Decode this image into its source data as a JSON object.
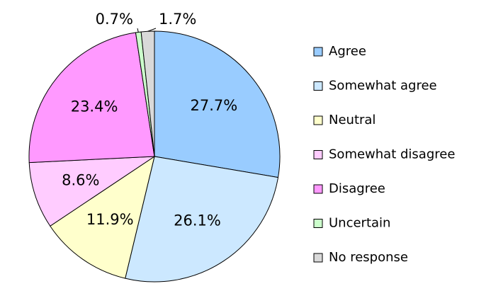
{
  "chart_data": {
    "type": "pie",
    "categories": [
      "Agree",
      "Somewhat agree",
      "Neutral",
      "Somewhat disagree",
      "Disagree",
      "Uncertain",
      "No response"
    ],
    "values": [
      27.7,
      26.1,
      11.9,
      8.6,
      23.4,
      0.7,
      1.7
    ],
    "value_labels": [
      "27.7%",
      "26.1%",
      "11.9%",
      "8.6%",
      "23.4%",
      "0.7%",
      "1.7%"
    ],
    "colors": [
      "#99ccff",
      "#cce8ff",
      "#ffffcc",
      "#ffccff",
      "#ff99ff",
      "#ccffcc",
      "#d9d9d9"
    ],
    "legend": "right"
  }
}
